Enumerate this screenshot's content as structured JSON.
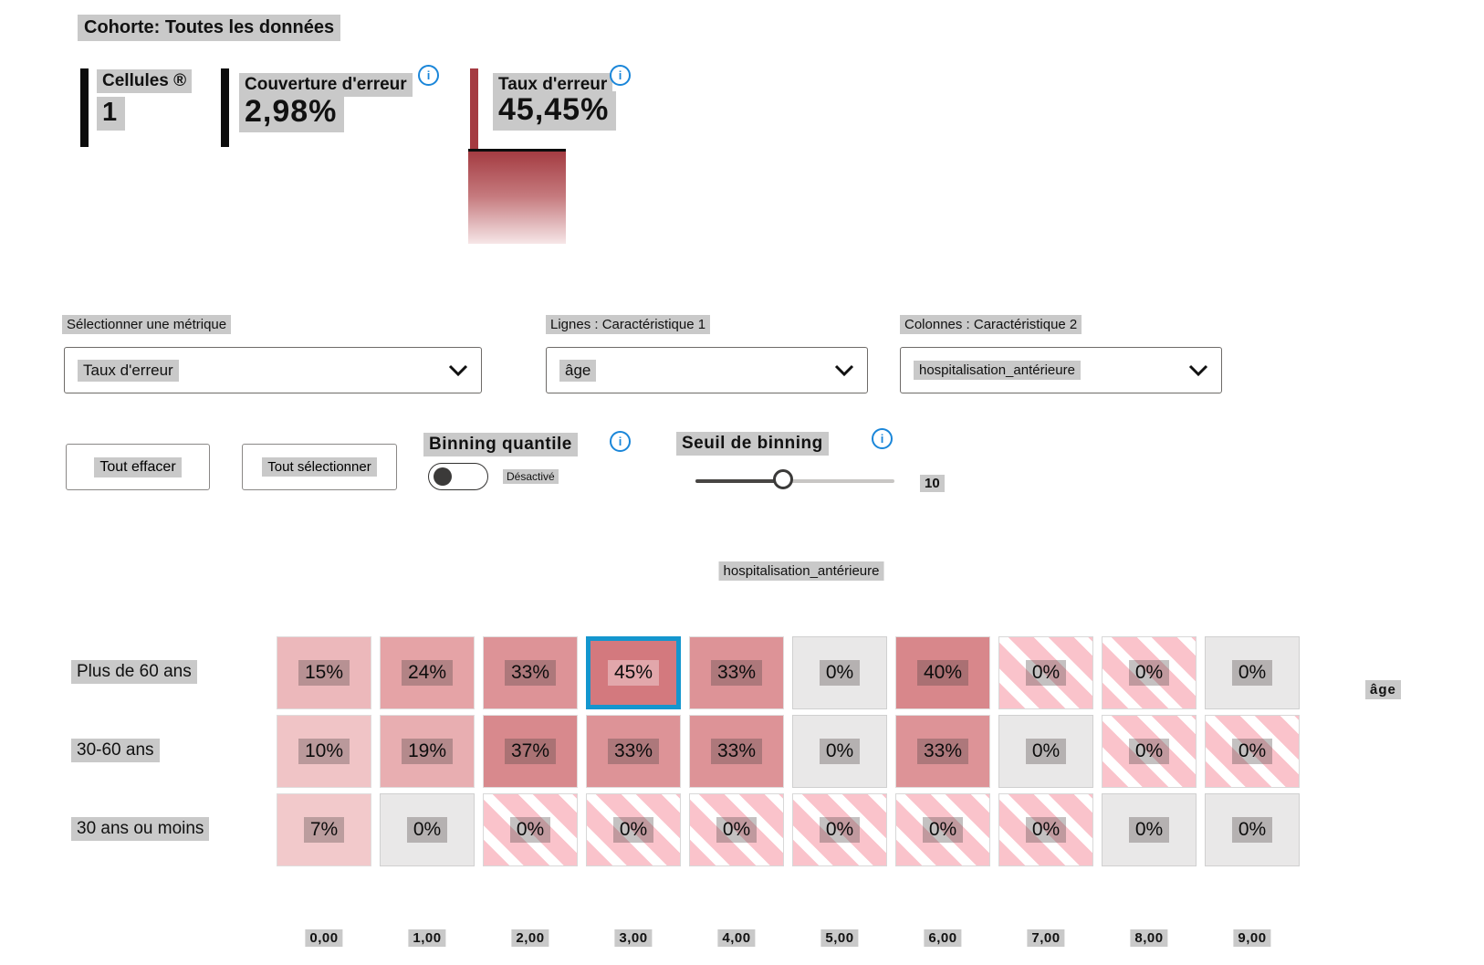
{
  "cohort": {
    "label": "Cohorte: Toutes les données"
  },
  "metrics": {
    "cells": {
      "label": "Cellules ®",
      "value": "1"
    },
    "coverage": {
      "label": "Couverture d'erreur",
      "value": "2,98%",
      "info_icon": "info-icon"
    },
    "error_rate": {
      "label": "Taux d'erreur",
      "value": "45,45%",
      "info_icon": "info-icon"
    }
  },
  "controls": {
    "metric_select": {
      "label": "Sélectionner une métrique",
      "value": "Taux d'erreur"
    },
    "feature1_select": {
      "label": "Lignes : Caractéristique 1",
      "value": "âge"
    },
    "feature2_select": {
      "label": "Colonnes : Caractéristique 2",
      "value": "hospitalisation_antérieure"
    },
    "clear_all_label": "Tout effacer",
    "select_all_label": "Tout sélectionner",
    "quantile_binning": {
      "label": "Binning quantile",
      "state": "Désactivé",
      "enabled": false
    },
    "binning_threshold": {
      "label": "Seuil de binning",
      "value": "10"
    }
  },
  "colors": {
    "selection_blue": "#1496ce",
    "info_blue": "#1a86d9",
    "bar_red": "#a53b41",
    "gradient_top": "#a43c42",
    "gradient_bottom": "#f6e6e7",
    "no_data_stripe_pink": "#fac3cb",
    "empty_gray": "#e9e8e8"
  },
  "heatmap": {
    "column_axis_label": "hospitalisation_antérieure",
    "row_axis_label": "âge",
    "columns": [
      "0,00",
      "1,00",
      "2,00",
      "3,00",
      "4,00",
      "5,00",
      "6,00",
      "7,00",
      "8,00",
      "9,00"
    ],
    "rows": [
      {
        "label": "Plus de 60 ans",
        "cells": [
          {
            "v": "15%",
            "t": "shade",
            "c": "#ecb8bb"
          },
          {
            "v": "24%",
            "t": "shade",
            "c": "#e5a3a6"
          },
          {
            "v": "33%",
            "t": "shade",
            "c": "#dd9397"
          },
          {
            "v": "45%",
            "t": "shade",
            "c": "#d3797e",
            "selected": true
          },
          {
            "v": "33%",
            "t": "shade",
            "c": "#dd9397"
          },
          {
            "v": "0%",
            "t": "gray"
          },
          {
            "v": "40%",
            "t": "shade",
            "c": "#d8878b"
          },
          {
            "v": "0%",
            "t": "striped"
          },
          {
            "v": "0%",
            "t": "striped"
          },
          {
            "v": "0%",
            "t": "gray"
          }
        ]
      },
      {
        "label": "30-60 ans",
        "cells": [
          {
            "v": "10%",
            "t": "shade",
            "c": "#f0c4c6"
          },
          {
            "v": "19%",
            "t": "shade",
            "c": "#e8aeb1"
          },
          {
            "v": "37%",
            "t": "shade",
            "c": "#d8898d"
          },
          {
            "v": "33%",
            "t": "shade",
            "c": "#dd9397"
          },
          {
            "v": "33%",
            "t": "shade",
            "c": "#dd9397"
          },
          {
            "v": "0%",
            "t": "gray"
          },
          {
            "v": "33%",
            "t": "shade",
            "c": "#dd9397"
          },
          {
            "v": "0%",
            "t": "gray"
          },
          {
            "v": "0%",
            "t": "striped"
          },
          {
            "v": "0%",
            "t": "striped"
          }
        ]
      },
      {
        "label": "30 ans ou moins",
        "cells": [
          {
            "v": "7%",
            "t": "shade",
            "c": "#f2c9cb"
          },
          {
            "v": "0%",
            "t": "gray"
          },
          {
            "v": "0%",
            "t": "striped"
          },
          {
            "v": "0%",
            "t": "striped"
          },
          {
            "v": "0%",
            "t": "striped"
          },
          {
            "v": "0%",
            "t": "striped"
          },
          {
            "v": "0%",
            "t": "striped"
          },
          {
            "v": "0%",
            "t": "striped"
          },
          {
            "v": "0%",
            "t": "gray"
          },
          {
            "v": "0%",
            "t": "gray"
          }
        ]
      }
    ]
  },
  "chart_data": {
    "type": "heatmap",
    "x": [
      "0,00",
      "1,00",
      "2,00",
      "3,00",
      "4,00",
      "5,00",
      "6,00",
      "7,00",
      "8,00",
      "9,00"
    ],
    "xlabel": "hospitalisation_antérieure",
    "y": [
      "Plus de 60 ans",
      "30-60 ans",
      "30 ans ou moins"
    ],
    "ylabel": "âge",
    "metric": "Taux d'erreur",
    "values_percent": [
      [
        15,
        24,
        33,
        45,
        33,
        0,
        40,
        0,
        0,
        0
      ],
      [
        10,
        19,
        37,
        33,
        33,
        0,
        33,
        0,
        0,
        0
      ],
      [
        7,
        0,
        0,
        0,
        0,
        0,
        0,
        0,
        0,
        0
      ]
    ],
    "cell_styles": [
      [
        "shade",
        "shade",
        "shade",
        "shade",
        "shade",
        "gray",
        "shade",
        "striped",
        "striped",
        "gray"
      ],
      [
        "shade",
        "shade",
        "shade",
        "shade",
        "shade",
        "gray",
        "shade",
        "gray",
        "striped",
        "striped"
      ],
      [
        "shade",
        "gray",
        "striped",
        "striped",
        "striped",
        "striped",
        "striped",
        "striped",
        "gray",
        "gray"
      ]
    ],
    "selected_cell": {
      "row": "Plus de 60 ans",
      "column": "3,00",
      "value": "45%"
    },
    "legend": {
      "type": "gradient",
      "top_color": "#a43c42",
      "bottom_color": "#f6e6e7"
    }
  }
}
